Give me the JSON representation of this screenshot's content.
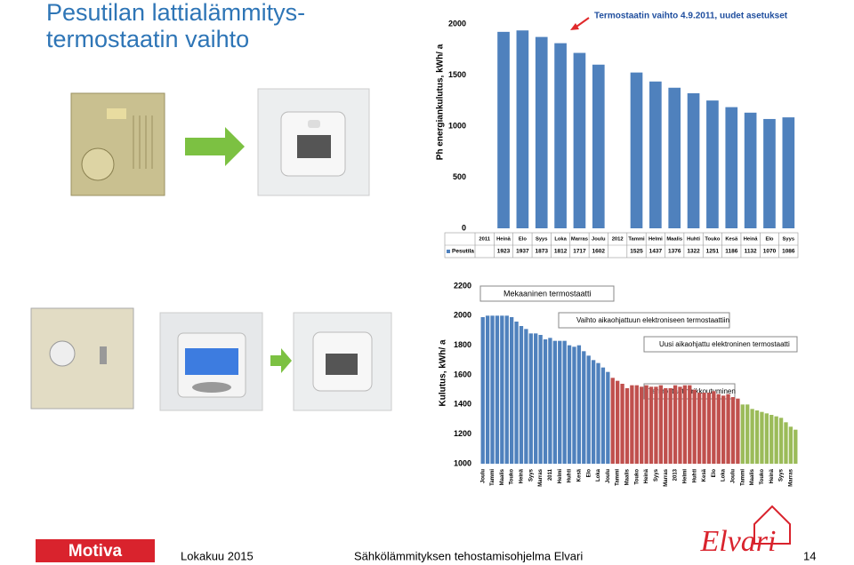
{
  "title": [
    "Pesutilan lattialämmitys-",
    "termostaatin vaihto"
  ],
  "footer": {
    "logo_left": "Motiva",
    "date": "Lokakuu 2015",
    "program": "Sähkölämmityksen tehostamisohjelma Elvari",
    "page": "14",
    "logo_right": "Elvari"
  },
  "chart_data": [
    {
      "type": "bar",
      "y_label": "Ph energiankulutus, kWh/ a",
      "annotation": "Termostaatin vaihto 4.9.2011, uudet asetukset",
      "categories": [
        "2011",
        "Heinä",
        "Elo",
        "Syys",
        "Loka",
        "Marras",
        "Joulu",
        "2012",
        "Tammi",
        "Helmi",
        "Maalis",
        "Huhti",
        "Touko",
        "Kesä",
        "Heinä",
        "Elo",
        "Syys"
      ],
      "series": [
        {
          "name": "Pesutila",
          "color": "#4f81bd",
          "values": [
            null,
            1923,
            1937,
            1873,
            1812,
            1717,
            1602,
            null,
            1525,
            1437,
            1376,
            1322,
            1251,
            1186,
            1132,
            1070,
            1086
          ]
        }
      ],
      "ylim": [
        0,
        2000
      ],
      "yticks": [
        0,
        500,
        1000,
        1500,
        2000
      ]
    },
    {
      "type": "bar",
      "y_label": "Kulutus, kWh/ a",
      "annotations": [
        "Mekaaninen termostaatti",
        "Vaihto aikaohjattuun elektroniseen termostaattiin",
        "Uusi aikaohjattu elektroninen termostaatti",
        "Termostaatin rikkoutuminen"
      ],
      "categories": [
        "Joulu",
        null,
        "Tammi",
        null,
        "Maalis",
        null,
        "Touko",
        null,
        "Heinä",
        null,
        "Syys",
        null,
        "Marras",
        null,
        "2011",
        null,
        "Helmi",
        null,
        "Huhti",
        null,
        "Kesä",
        null,
        "Elo",
        null,
        "Loka",
        null,
        "Joulu",
        null,
        "Tammi",
        null,
        "Maalis",
        null,
        "Touko",
        null,
        "Heinä",
        null,
        "Syys",
        null,
        "Marras",
        null,
        "2013",
        null,
        "Helmi",
        null,
        "Huhti",
        null,
        "Kesä",
        null,
        "Elo",
        null,
        "Loka",
        null,
        "Joulu",
        null,
        "Tammi",
        null,
        "Maalis",
        null,
        "Touko",
        null,
        "Heinä",
        null,
        "Syys",
        null,
        "Marras",
        null
      ],
      "values": [
        1990,
        2000,
        2000,
        2000,
        2000,
        2000,
        1990,
        1960,
        1930,
        1910,
        1880,
        1880,
        1870,
        1840,
        1850,
        1830,
        1830,
        1830,
        1800,
        1790,
        1800,
        1760,
        1730,
        1700,
        1680,
        1650,
        1620,
        1580,
        1560,
        1540,
        1510,
        1530,
        1530,
        1520,
        1530,
        1520,
        1520,
        1530,
        1510,
        1510,
        1530,
        1520,
        1530,
        1530,
        1500,
        1480,
        1480,
        1480,
        1490,
        1470,
        1460,
        1470,
        1450,
        1440,
        1400,
        1400,
        1370,
        1360,
        1350,
        1340,
        1330,
        1320,
        1310,
        1280,
        1250,
        1230
      ],
      "colors": [
        "#4f81bd",
        "#4f81bd",
        "#4f81bd",
        "#4f81bd",
        "#4f81bd",
        "#4f81bd",
        "#4f81bd",
        "#4f81bd",
        "#4f81bd",
        "#4f81bd",
        "#4f81bd",
        "#4f81bd",
        "#4f81bd",
        "#4f81bd",
        "#4f81bd",
        "#4f81bd",
        "#4f81bd",
        "#4f81bd",
        "#4f81bd",
        "#4f81bd",
        "#4f81bd",
        "#4f81bd",
        "#4f81bd",
        "#4f81bd",
        "#4f81bd",
        "#4f81bd",
        "#4f81bd",
        "#c0504d",
        "#c0504d",
        "#c0504d",
        "#c0504d",
        "#c0504d",
        "#c0504d",
        "#c0504d",
        "#c0504d",
        "#c0504d",
        "#c0504d",
        "#c0504d",
        "#c0504d",
        "#c0504d",
        "#c0504d",
        "#c0504d",
        "#c0504d",
        "#c0504d",
        "#c0504d",
        "#c0504d",
        "#c0504d",
        "#c0504d",
        "#c0504d",
        "#c0504d",
        "#c0504d",
        "#c0504d",
        "#c0504d",
        "#c0504d",
        "#9bbb59",
        "#9bbb59",
        "#9bbb59",
        "#9bbb59",
        "#9bbb59",
        "#9bbb59",
        "#9bbb59",
        "#9bbb59",
        "#9bbb59",
        "#9bbb59",
        "#9bbb59",
        "#9bbb59"
      ],
      "ylim": [
        1000,
        2200
      ],
      "yticks": [
        1000,
        1200,
        1400,
        1600,
        1800,
        2000,
        2200
      ]
    }
  ]
}
